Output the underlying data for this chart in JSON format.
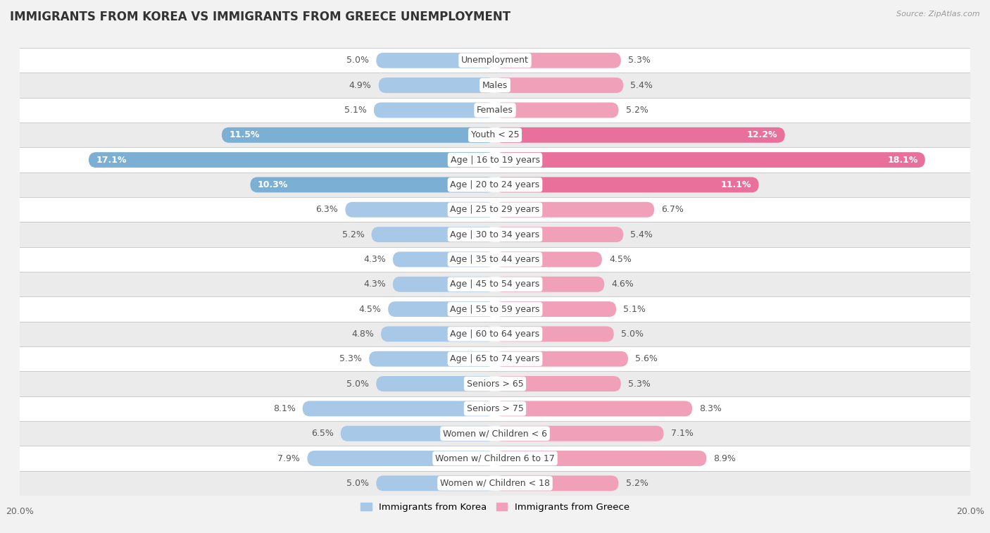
{
  "title": "IMMIGRANTS FROM KOREA VS IMMIGRANTS FROM GREECE UNEMPLOYMENT",
  "source": "Source: ZipAtlas.com",
  "categories": [
    "Unemployment",
    "Males",
    "Females",
    "Youth < 25",
    "Age | 16 to 19 years",
    "Age | 20 to 24 years",
    "Age | 25 to 29 years",
    "Age | 30 to 34 years",
    "Age | 35 to 44 years",
    "Age | 45 to 54 years",
    "Age | 55 to 59 years",
    "Age | 60 to 64 years",
    "Age | 65 to 74 years",
    "Seniors > 65",
    "Seniors > 75",
    "Women w/ Children < 6",
    "Women w/ Children 6 to 17",
    "Women w/ Children < 18"
  ],
  "korea_values": [
    5.0,
    4.9,
    5.1,
    11.5,
    17.1,
    10.3,
    6.3,
    5.2,
    4.3,
    4.3,
    4.5,
    4.8,
    5.3,
    5.0,
    8.1,
    6.5,
    7.9,
    5.0
  ],
  "greece_values": [
    5.3,
    5.4,
    5.2,
    12.2,
    18.1,
    11.1,
    6.7,
    5.4,
    4.5,
    4.6,
    5.1,
    5.0,
    5.6,
    5.3,
    8.3,
    7.1,
    8.9,
    5.2
  ],
  "korea_color_normal": "#a8c8e8",
  "korea_color_large": "#7bafd4",
  "greece_color_normal": "#f0a0b8",
  "greece_color_large": "#e8709a",
  "korea_label": "Immigrants from Korea",
  "greece_label": "Immigrants from Greece",
  "x_max": 20.0,
  "background_color": "#f2f2f2",
  "row_color_odd": "#ffffff",
  "row_color_even": "#ebebeb",
  "title_fontsize": 12,
  "label_fontsize": 9,
  "value_fontsize": 9,
  "large_threshold": 10.0
}
